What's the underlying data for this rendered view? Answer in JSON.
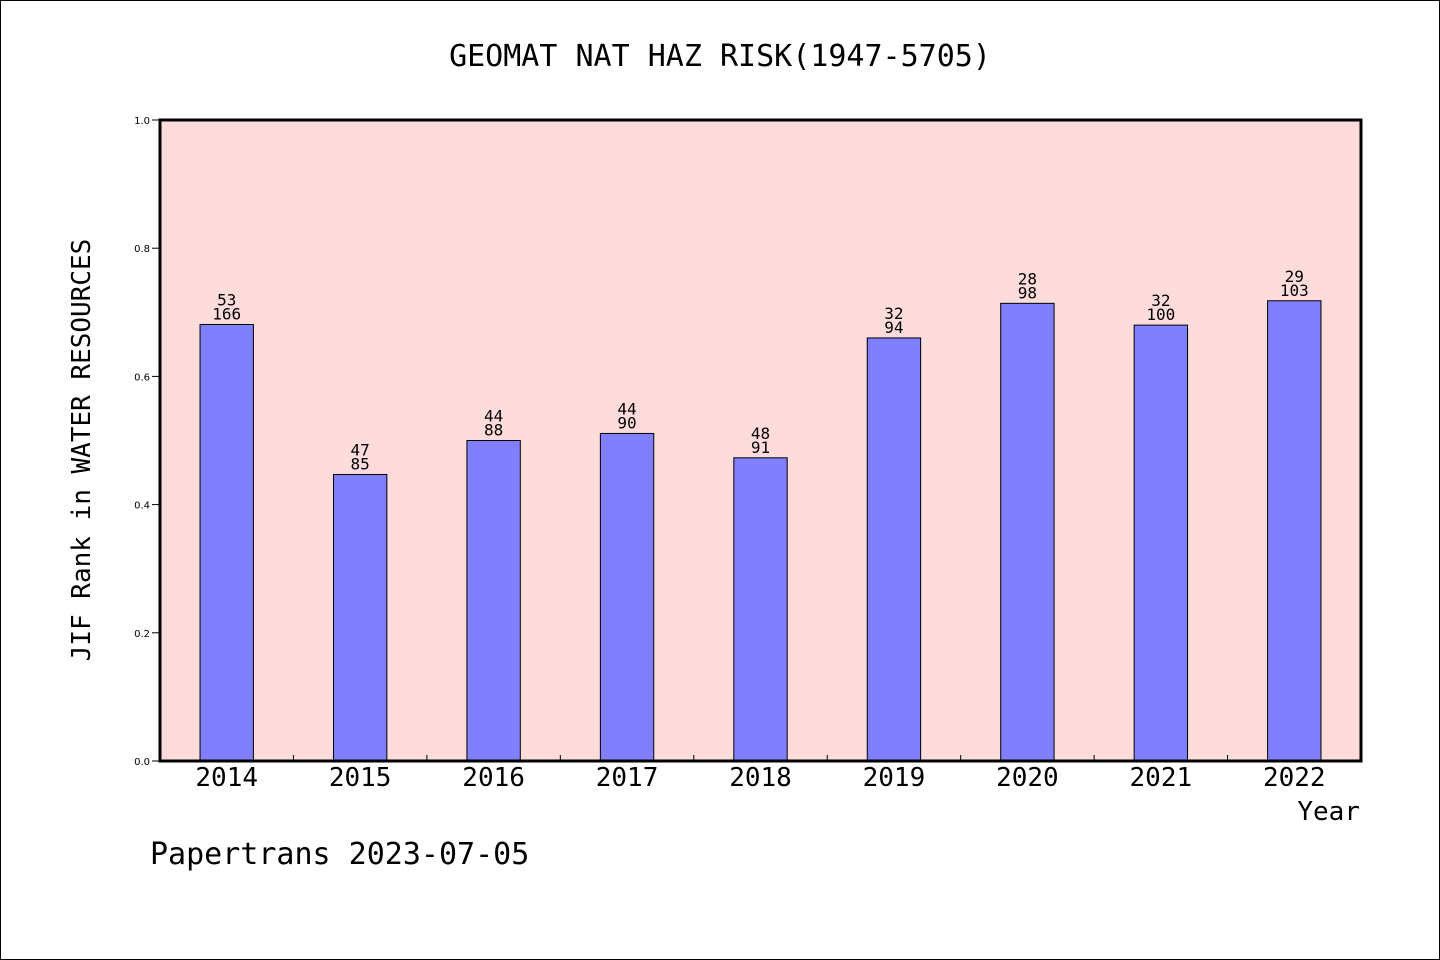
{
  "chart_data": {
    "type": "bar",
    "title": "GEOMAT NAT HAZ RISK(1947-5705)",
    "xlabel": "Year",
    "ylabel": "JIF Rank in WATER RESOURCES",
    "ylim": [
      0,
      1.0
    ],
    "yticks": [
      "0.0",
      "0.2",
      "0.4",
      "0.6",
      "0.8",
      "1.0"
    ],
    "categories": [
      "2014",
      "2015",
      "2016",
      "2017",
      "2018",
      "2019",
      "2020",
      "2021",
      "2022"
    ],
    "values": [
      0.681,
      0.447,
      0.5,
      0.511,
      0.473,
      0.66,
      0.714,
      0.68,
      0.718
    ],
    "rank_labels": [
      "53",
      "47",
      "44",
      "44",
      "48",
      "32",
      "28",
      "32",
      "29"
    ],
    "total_labels": [
      "166",
      "85",
      "88",
      "90",
      "91",
      "94",
      "98",
      "100",
      "103"
    ],
    "grid": false,
    "colors": {
      "bar_fill": "#8080ff",
      "plot_background": "#ffdcdc"
    }
  },
  "footer": "Papertrans 2023-07-05"
}
